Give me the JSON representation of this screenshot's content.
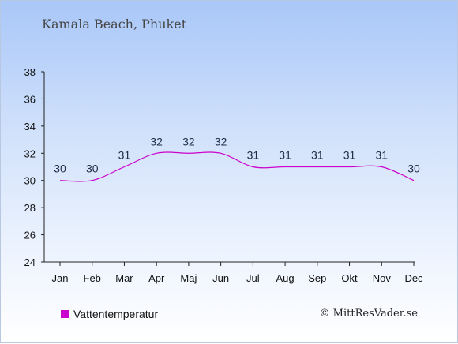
{
  "header": {
    "title": "Kamala Beach, Phuket"
  },
  "legend": {
    "label": "Vattentemperatur",
    "color": "#cc00cc"
  },
  "credit": {
    "text": "© MittResVader.se"
  },
  "chart_data": {
    "type": "line",
    "categories": [
      "Jan",
      "Feb",
      "Mar",
      "Apr",
      "Maj",
      "Jun",
      "Jul",
      "Aug",
      "Sep",
      "Okt",
      "Nov",
      "Dec"
    ],
    "series": [
      {
        "name": "Vattentemperatur",
        "color": "#cc00cc",
        "values": [
          30,
          30,
          31,
          32,
          32,
          32,
          31,
          31,
          31,
          31,
          31,
          30
        ]
      }
    ],
    "ylim": [
      24,
      38
    ],
    "yticks": [
      24,
      26,
      28,
      30,
      32,
      34,
      36,
      38
    ],
    "grid": false,
    "legend_position": "bottom-left"
  }
}
